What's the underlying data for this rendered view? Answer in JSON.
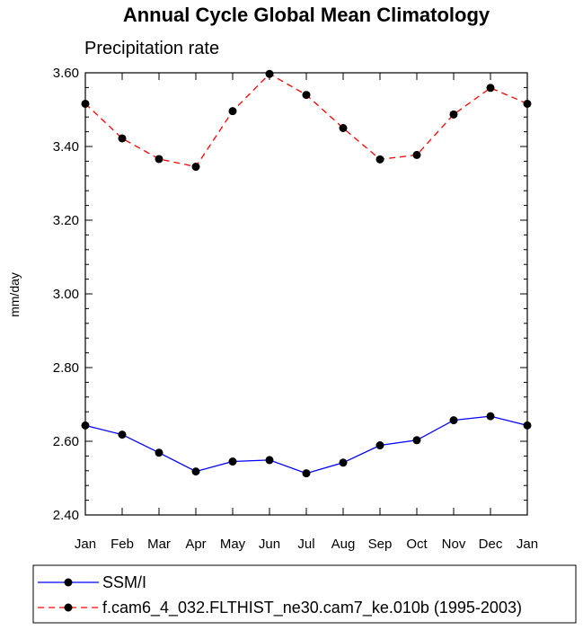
{
  "chart_data": {
    "type": "line",
    "title": "Annual Cycle Global Mean Climatology",
    "subtitle": "Precipitation rate",
    "ylabel": "mm/day",
    "xlabel": "",
    "categories": [
      "Jan",
      "Feb",
      "Mar",
      "Apr",
      "May",
      "Jun",
      "Jul",
      "Aug",
      "Sep",
      "Oct",
      "Nov",
      "Dec",
      "Jan"
    ],
    "ylim": [
      2.4,
      3.6
    ],
    "yticks": [
      "2.40",
      "2.60",
      "2.80",
      "3.00",
      "3.20",
      "3.40",
      "3.60"
    ],
    "grid": false,
    "legend_position": "bottom",
    "series": [
      {
        "name": "SSM/I",
        "color": "#0000ff",
        "line_style": "solid",
        "marker": "filled-circle",
        "values": [
          2.643,
          2.618,
          2.569,
          2.518,
          2.545,
          2.549,
          2.513,
          2.542,
          2.589,
          2.603,
          2.657,
          2.668,
          2.643
        ]
      },
      {
        "name": "f.cam6_4_032.FLTHIST_ne30.cam7_ke.010b (1995-2003)",
        "color": "#ff0000",
        "line_style": "dashed",
        "marker": "filled-circle",
        "values": [
          3.516,
          3.422,
          3.366,
          3.345,
          3.496,
          3.597,
          3.54,
          3.45,
          3.365,
          3.377,
          3.487,
          3.559,
          3.516
        ]
      }
    ]
  }
}
